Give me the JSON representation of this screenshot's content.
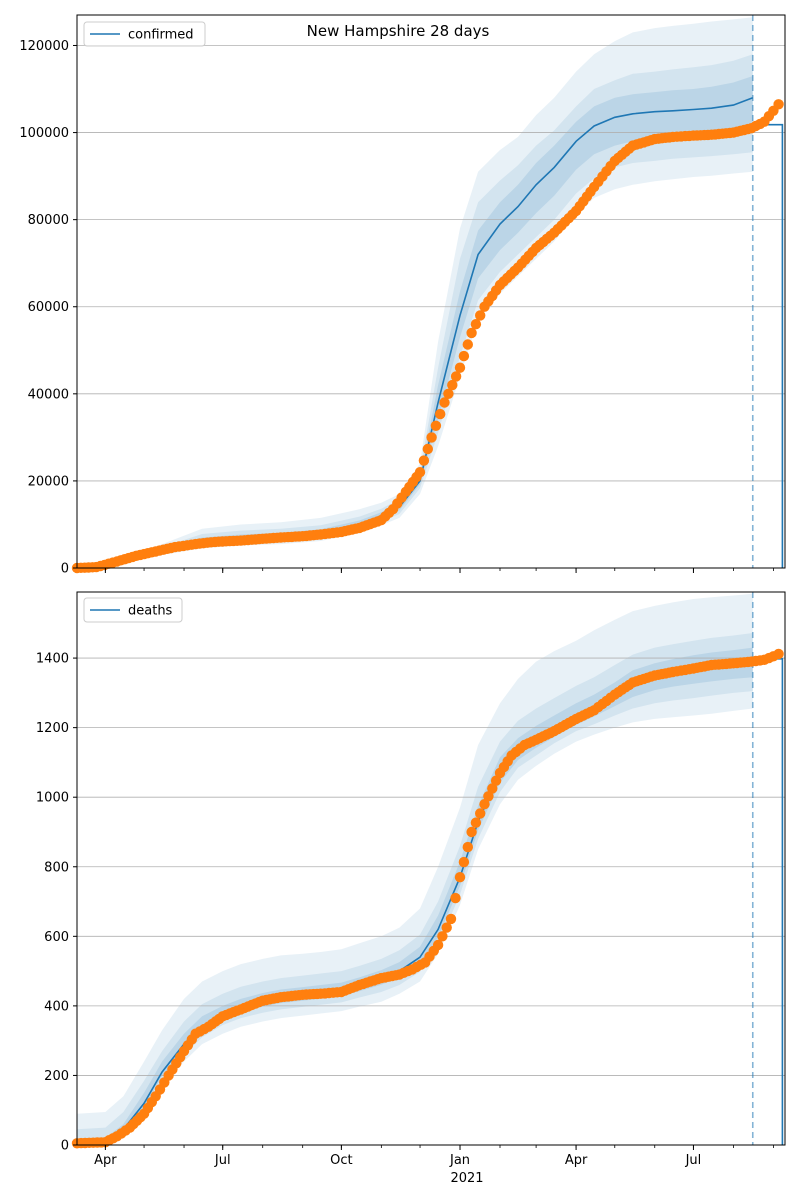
{
  "figure_title": "New Hampshire 28 days",
  "chart_data": [
    {
      "type": "line",
      "title": "New Hampshire 28 days",
      "legend": {
        "label": "confirmed",
        "placement": "top-left"
      },
      "xlabel": "",
      "ylabel": "",
      "x_range": [
        "2020-03-10",
        "2021-09-10"
      ],
      "forecast_start": "2021-08-16",
      "ylim": [
        0,
        127000
      ],
      "yticks": [
        0,
        20000,
        40000,
        60000,
        80000,
        100000,
        120000
      ],
      "ytick_labels": [
        "0",
        "20000",
        "40000",
        "60000",
        "80000",
        "100000",
        "120000"
      ],
      "grid": "horizontal",
      "colors": {
        "model": "#1f77b4",
        "observed": "#ff7f0e",
        "band": "#1f77b4"
      },
      "model": {
        "name": "confirmed",
        "x": [
          "2020-03-10",
          "2020-04-15",
          "2020-05-15",
          "2020-06-15",
          "2020-07-15",
          "2020-08-15",
          "2020-09-15",
          "2020-10-15",
          "2020-11-01",
          "2020-11-15",
          "2020-12-01",
          "2020-12-15",
          "2021-01-01",
          "2021-01-15",
          "2021-02-01",
          "2021-02-15",
          "2021-03-01",
          "2021-03-15",
          "2021-04-01",
          "2021-04-15",
          "2021-05-01",
          "2021-05-15",
          "2021-06-01",
          "2021-06-15",
          "2021-07-01",
          "2021-07-15",
          "2021-08-01",
          "2021-08-16"
        ],
        "values": [
          0,
          1500,
          4000,
          6000,
          6800,
          7200,
          8000,
          10000,
          12000,
          14000,
          20000,
          38000,
          58000,
          72000,
          79000,
          83000,
          88000,
          92000,
          98000,
          101500,
          103500,
          104300,
          104800,
          105000,
          105300,
          105600,
          106300,
          108000
        ]
      },
      "step": {
        "x": [
          "2021-08-16",
          "2021-09-08",
          "2021-09-08"
        ],
        "values": [
          101800,
          101800,
          0
        ]
      },
      "bands": [
        {
          "lower": [
            0,
            1000,
            3000,
            4500,
            5200,
            5500,
            6200,
            8000,
            9800,
            11500,
            17000,
            28000,
            44000,
            57000,
            63000,
            67000,
            71000,
            75000,
            81000,
            85000,
            87000,
            88000,
            88800,
            89300,
            89800,
            90100,
            90600,
            91000
          ],
          "upper": [
            0,
            2000,
            5500,
            9000,
            10000,
            10500,
            11500,
            13500,
            15000,
            17000,
            24000,
            52000,
            78000,
            91000,
            96000,
            99000,
            104000,
            108000,
            114000,
            118000,
            121000,
            123000,
            124000,
            124500,
            125000,
            125500,
            126000,
            126500
          ]
        },
        {
          "lower": [
            0,
            1200,
            3400,
            5000,
            5800,
            6200,
            6900,
            8800,
            10600,
            12400,
            18300,
            31000,
            48500,
            61500,
            68000,
            72000,
            76000,
            80000,
            86000,
            89500,
            92000,
            93000,
            93500,
            94000,
            94300,
            94600,
            95000,
            95500
          ],
          "upper": [
            0,
            1800,
            4800,
            7800,
            8600,
            9000,
            9800,
            11800,
            13600,
            15800,
            22200,
            46000,
            71000,
            84000,
            89000,
            92500,
            97000,
            100500,
            106000,
            110000,
            112000,
            113500,
            114000,
            114500,
            115000,
            115500,
            116500,
            118000
          ]
        },
        {
          "lower": [
            0,
            1350,
            3700,
            5500,
            6300,
            6700,
            7400,
            9400,
            11300,
            13200,
            19200,
            34000,
            53000,
            66500,
            73000,
            77000,
            81500,
            85500,
            91500,
            95000,
            97000,
            98000,
            98500,
            99000,
            99300,
            99500,
            100000,
            100500
          ],
          "upper": [
            0,
            1650,
            4400,
            7000,
            7700,
            8100,
            8900,
            10900,
            12800,
            14800,
            21000,
            42000,
            63500,
            77500,
            84000,
            88000,
            93000,
            97000,
            102500,
            106000,
            108000,
            108800,
            109300,
            109700,
            110000,
            110500,
            111500,
            113000
          ]
        }
      ],
      "observed": {
        "x": [
          "2020-03-10",
          "2020-03-25",
          "2020-04-10",
          "2020-04-25",
          "2020-05-10",
          "2020-05-25",
          "2020-06-10",
          "2020-06-25",
          "2020-07-15",
          "2020-08-01",
          "2020-08-15",
          "2020-09-01",
          "2020-09-15",
          "2020-10-01",
          "2020-10-15",
          "2020-11-01",
          "2020-11-10",
          "2020-11-20",
          "2020-12-01",
          "2020-12-10",
          "2020-12-20",
          "2021-01-01",
          "2021-01-10",
          "2021-01-20",
          "2021-02-01",
          "2021-02-15",
          "2021-03-01",
          "2021-03-15",
          "2021-04-01",
          "2021-04-15",
          "2021-05-01",
          "2021-05-15",
          "2021-06-01",
          "2021-06-15",
          "2021-07-01",
          "2021-07-15",
          "2021-08-01",
          "2021-08-15",
          "2021-08-25",
          "2021-09-01",
          "2021-09-05"
        ],
        "values": [
          0,
          200,
          1500,
          2800,
          3800,
          4800,
          5500,
          6000,
          6300,
          6700,
          7000,
          7300,
          7700,
          8300,
          9200,
          11000,
          13500,
          17500,
          22000,
          30000,
          38000,
          46000,
          54000,
          60000,
          65000,
          69000,
          73500,
          77000,
          82000,
          87500,
          93500,
          97000,
          98500,
          99000,
          99300,
          99500,
          100000,
          101000,
          102500,
          105000,
          106500
        ]
      },
      "x_tick_labels": [
        {
          "date": "2020-04-01",
          "label": "Apr"
        },
        {
          "date": "2020-07-01",
          "label": "Jul"
        },
        {
          "date": "2020-10-01",
          "label": "Oct"
        },
        {
          "date": "2021-01-01",
          "label": "Jan"
        },
        {
          "date": "2021-04-01",
          "label": "Apr"
        },
        {
          "date": "2021-07-01",
          "label": "Jul"
        }
      ]
    },
    {
      "type": "line",
      "title": "",
      "legend": {
        "label": "deaths",
        "placement": "top-left"
      },
      "xlabel": "2021",
      "ylabel": "",
      "x_range": [
        "2020-03-10",
        "2021-09-10"
      ],
      "forecast_start": "2021-08-16",
      "ylim": [
        0,
        1590
      ],
      "yticks": [
        0,
        200,
        400,
        600,
        800,
        1000,
        1200,
        1400
      ],
      "ytick_labels": [
        "0",
        "200",
        "400",
        "600",
        "800",
        "1000",
        "1200",
        "1400"
      ],
      "grid": "horizontal",
      "colors": {
        "model": "#1f77b4",
        "observed": "#ff7f0e",
        "band": "#1f77b4"
      },
      "model": {
        "name": "deaths",
        "x": [
          "2020-03-10",
          "2020-04-01",
          "2020-04-15",
          "2020-05-01",
          "2020-05-15",
          "2020-06-01",
          "2020-06-15",
          "2020-07-01",
          "2020-07-15",
          "2020-08-01",
          "2020-08-15",
          "2020-09-01",
          "2020-09-15",
          "2020-10-01",
          "2020-10-15",
          "2020-11-01",
          "2020-11-15",
          "2020-12-01",
          "2020-12-15",
          "2021-01-01",
          "2021-01-15",
          "2021-02-01",
          "2021-02-15",
          "2021-03-01",
          "2021-03-15",
          "2021-04-01",
          "2021-04-15",
          "2021-05-01",
          "2021-05-15",
          "2021-06-01",
          "2021-06-15",
          "2021-07-01",
          "2021-07-15",
          "2021-08-01",
          "2021-08-16"
        ],
        "values": [
          3,
          10,
          45,
          120,
          210,
          290,
          340,
          375,
          395,
          415,
          425,
          432,
          438,
          445,
          460,
          480,
          500,
          540,
          620,
          770,
          930,
          1070,
          1130,
          1165,
          1195,
          1230,
          1255,
          1290,
          1325,
          1350,
          1362,
          1372,
          1380,
          1386,
          1390
        ]
      },
      "step": {
        "x": [
          "2021-08-16",
          "2021-09-08",
          "2021-09-08"
        ],
        "values": [
          1398,
          1398,
          0
        ]
      },
      "bands": [
        {
          "lower": [
            0,
            0,
            20,
            80,
            170,
            240,
            290,
            320,
            340,
            355,
            365,
            372,
            378,
            385,
            398,
            412,
            435,
            470,
            550,
            690,
            850,
            980,
            1050,
            1090,
            1125,
            1160,
            1180,
            1200,
            1215,
            1225,
            1230,
            1235,
            1240,
            1248,
            1255
          ],
          "upper": [
            90,
            95,
            140,
            240,
            330,
            420,
            470,
            500,
            520,
            535,
            545,
            550,
            555,
            563,
            580,
            600,
            625,
            680,
            800,
            970,
            1150,
            1270,
            1340,
            1390,
            1420,
            1450,
            1480,
            1510,
            1535,
            1550,
            1560,
            1570,
            1575,
            1580,
            1585
          ]
        },
        {
          "lower": [
            0,
            3,
            30,
            95,
            185,
            260,
            310,
            345,
            365,
            380,
            390,
            397,
            403,
            410,
            424,
            440,
            460,
            498,
            575,
            720,
            880,
            1015,
            1085,
            1120,
            1155,
            1190,
            1210,
            1235,
            1255,
            1270,
            1278,
            1285,
            1292,
            1300,
            1305
          ],
          "upper": [
            45,
            50,
            95,
            185,
            270,
            355,
            405,
            435,
            455,
            470,
            480,
            487,
            493,
            500,
            515,
            535,
            560,
            605,
            700,
            860,
            1030,
            1160,
            1220,
            1255,
            1285,
            1320,
            1345,
            1380,
            1410,
            1430,
            1440,
            1450,
            1458,
            1465,
            1472
          ]
        },
        {
          "lower": [
            0,
            6,
            38,
            108,
            198,
            276,
            326,
            361,
            381,
            398,
            408,
            415,
            421,
            428,
            442,
            461,
            482,
            519,
            597,
            745,
            905,
            1042,
            1107,
            1142,
            1173,
            1208,
            1232,
            1262,
            1288,
            1308,
            1318,
            1326,
            1333,
            1340,
            1345
          ],
          "upper": [
            15,
            20,
            60,
            150,
            240,
            320,
            370,
            400,
            420,
            437,
            447,
            454,
            460,
            467,
            482,
            503,
            526,
            570,
            660,
            815,
            975,
            1115,
            1170,
            1205,
            1235,
            1270,
            1295,
            1330,
            1365,
            1385,
            1397,
            1408,
            1416,
            1423,
            1430
          ]
        }
      ],
      "observed": {
        "x": [
          "2020-03-10",
          "2020-04-01",
          "2020-04-10",
          "2020-04-20",
          "2020-05-01",
          "2020-05-10",
          "2020-05-20",
          "2020-06-01",
          "2020-06-10",
          "2020-06-20",
          "2020-07-01",
          "2020-07-15",
          "2020-08-01",
          "2020-08-15",
          "2020-09-01",
          "2020-09-15",
          "2020-10-01",
          "2020-10-15",
          "2020-11-01",
          "2020-11-15",
          "2020-11-25",
          "2020-12-05",
          "2020-12-15",
          "2020-12-25",
          "2021-01-01",
          "2021-01-10",
          "2021-01-20",
          "2021-02-01",
          "2021-02-10",
          "2021-02-20",
          "2021-03-01",
          "2021-03-15",
          "2021-04-01",
          "2021-04-15",
          "2021-05-01",
          "2021-05-15",
          "2021-06-01",
          "2021-06-15",
          "2021-07-01",
          "2021-07-15",
          "2021-08-01",
          "2021-08-15",
          "2021-08-25",
          "2021-09-01",
          "2021-09-05"
        ],
        "values": [
          5,
          8,
          25,
          50,
          90,
          140,
          200,
          270,
          320,
          340,
          370,
          390,
          415,
          425,
          432,
          435,
          440,
          460,
          480,
          490,
          505,
          525,
          575,
          650,
          770,
          900,
          980,
          1070,
          1120,
          1150,
          1165,
          1190,
          1225,
          1250,
          1295,
          1330,
          1350,
          1360,
          1370,
          1380,
          1385,
          1390,
          1395,
          1405,
          1412
        ]
      },
      "x_tick_labels": [
        {
          "date": "2020-04-01",
          "label": "Apr"
        },
        {
          "date": "2020-07-01",
          "label": "Jul"
        },
        {
          "date": "2020-10-01",
          "label": "Oct"
        },
        {
          "date": "2021-01-01",
          "label": "Jan"
        },
        {
          "date": "2021-04-01",
          "label": "Apr"
        },
        {
          "date": "2021-07-01",
          "label": "Jul"
        }
      ]
    }
  ]
}
